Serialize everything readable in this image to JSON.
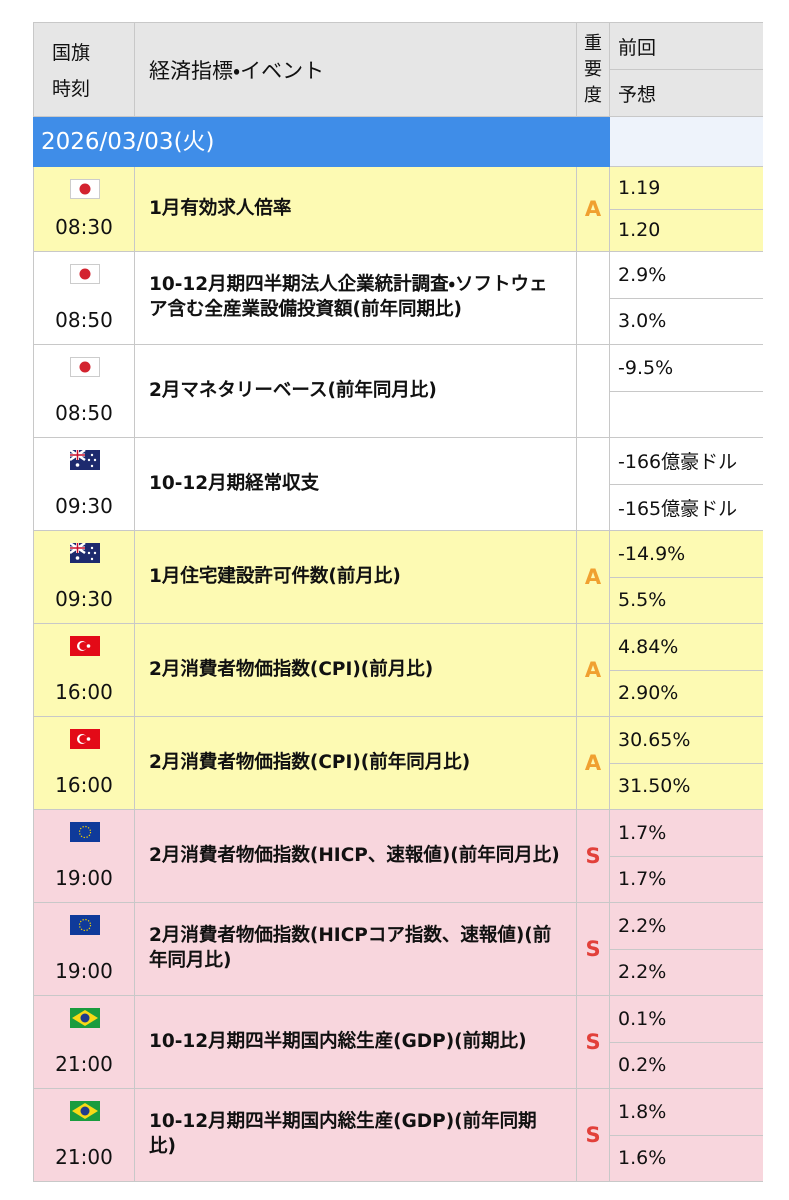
{
  "header": {
    "flag": "国旗",
    "time": "時刻",
    "event": "経済指標・イベント",
    "importance": [
      "重",
      "要",
      "度"
    ],
    "previous": "前回",
    "forecast": "予想"
  },
  "date": "2026/03/03(火)",
  "rows": [
    {
      "time": "08:30",
      "event": "1月有効求人倍率",
      "importance": "A",
      "previous": "1.19",
      "forecast": "1.20"
    },
    {
      "time": "08:50",
      "event": "10-12月期四半期法人企業統計調査・ソフトウェア含む全産業設備投資額(前年同期比)",
      "previous": "2.9%",
      "forecast": "3.0%"
    },
    {
      "time": "08:50",
      "event": "2月マネタリーベース(前年同月比)",
      "previous": "-9.5%"
    },
    {
      "time": "09:30",
      "event": "10-12月期経常収支",
      "previous": "-166億豪ドル",
      "forecast": "-165億豪ドル"
    },
    {
      "time": "09:30",
      "event": "1月住宅建設許可件数(前月比)",
      "importance": "A",
      "previous": "-14.9%",
      "forecast": "5.5%"
    },
    {
      "time": "16:00",
      "event": "2月消費者物価指数(CPI)(前月比)",
      "importance": "A",
      "previous": "4.84%",
      "forecast": "2.90%"
    },
    {
      "time": "16:00",
      "event": "2月消費者物価指数(CPI)(前年同月比)",
      "importance": "A",
      "previous": "30.65%",
      "forecast": "31.50%"
    },
    {
      "time": "19:00",
      "event": "2月消費者物価指数(HICP、速報値)(前年同月比)",
      "importance": "S",
      "previous": "1.7%",
      "forecast": "1.7%"
    },
    {
      "time": "19:00",
      "event": "2月消費者物価指数(HICPコア指数、速報値)(前年同月比)",
      "importance": "S",
      "previous": "2.2%",
      "forecast": "2.2%"
    },
    {
      "time": "21:00",
      "event": "10-12月期四半期国内総生産(GDP)(前期比)",
      "importance": "S",
      "previous": "0.1%",
      "forecast": "0.2%"
    },
    {
      "time": "21:00",
      "event": "10-12月期四半期国内総生産(GDP)(前年同期比)",
      "importance": "S",
      "previous": "1.8%",
      "forecast": "1.6%"
    }
  ]
}
